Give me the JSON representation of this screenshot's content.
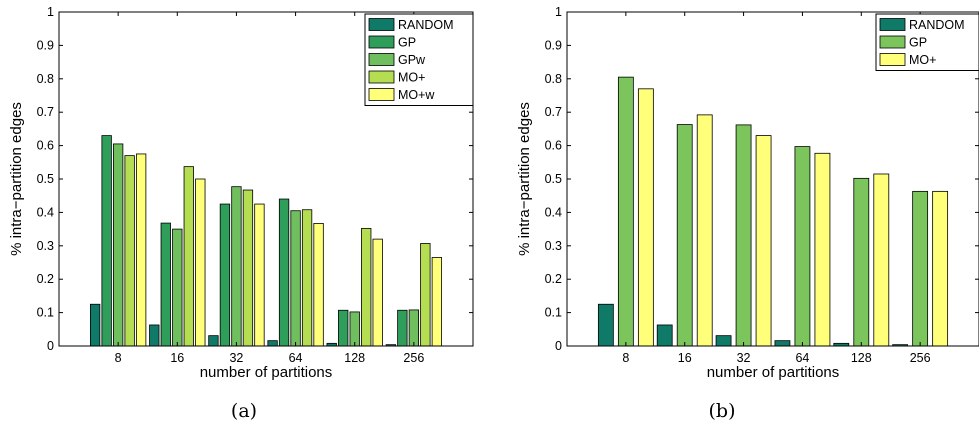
{
  "chart_data": [
    {
      "type": "bar",
      "caption": "(a)",
      "xlabel": "number of partitions",
      "ylabel": "% intra−partition edges",
      "ylim": [
        0,
        1
      ],
      "yticks": [
        "0",
        "0.1",
        "0.2",
        "0.3",
        "0.4",
        "0.5",
        "0.6",
        "0.7",
        "0.8",
        "0.9",
        "1"
      ],
      "categories": [
        "8",
        "16",
        "32",
        "64",
        "128",
        "256"
      ],
      "legend_position": "top-right",
      "grid": false,
      "series": [
        {
          "name": "RANDOM",
          "color": "#0f7a68",
          "values": [
            0.125,
            0.063,
            0.031,
            0.016,
            0.008,
            0.004
          ]
        },
        {
          "name": "GP",
          "color": "#2f9e5a",
          "values": [
            0.63,
            0.368,
            0.425,
            0.44,
            0.107,
            0.107
          ]
        },
        {
          "name": "GPw",
          "color": "#6fbf5f",
          "values": [
            0.605,
            0.35,
            0.477,
            0.405,
            0.102,
            0.108
          ]
        },
        {
          "name": "MO+",
          "color": "#b5dd52",
          "values": [
            0.57,
            0.537,
            0.467,
            0.408,
            0.352,
            0.307
          ]
        },
        {
          "name": "MO+w",
          "color": "#ffff7a",
          "values": [
            0.575,
            0.5,
            0.425,
            0.367,
            0.32,
            0.265
          ]
        }
      ]
    },
    {
      "type": "bar",
      "caption": "(b)",
      "xlabel": "number of partitions",
      "ylabel": "% intra−partition edges",
      "ylim": [
        0,
        1
      ],
      "yticks": [
        "0",
        "0.1",
        "0.2",
        "0.3",
        "0.4",
        "0.5",
        "0.6",
        "0.7",
        "0.8",
        "0.9",
        "1"
      ],
      "categories": [
        "8",
        "16",
        "32",
        "64",
        "128",
        "256"
      ],
      "legend_position": "top-right",
      "grid": false,
      "series": [
        {
          "name": "RANDOM",
          "color": "#0f7a68",
          "values": [
            0.125,
            0.063,
            0.031,
            0.016,
            0.008,
            0.004
          ]
        },
        {
          "name": "GP",
          "color": "#7cc55d",
          "values": [
            0.805,
            0.663,
            0.662,
            0.597,
            0.502,
            0.463
          ]
        },
        {
          "name": "MO+",
          "color": "#ffff7a",
          "values": [
            0.77,
            0.692,
            0.63,
            0.577,
            0.515,
            0.463
          ]
        }
      ]
    }
  ]
}
